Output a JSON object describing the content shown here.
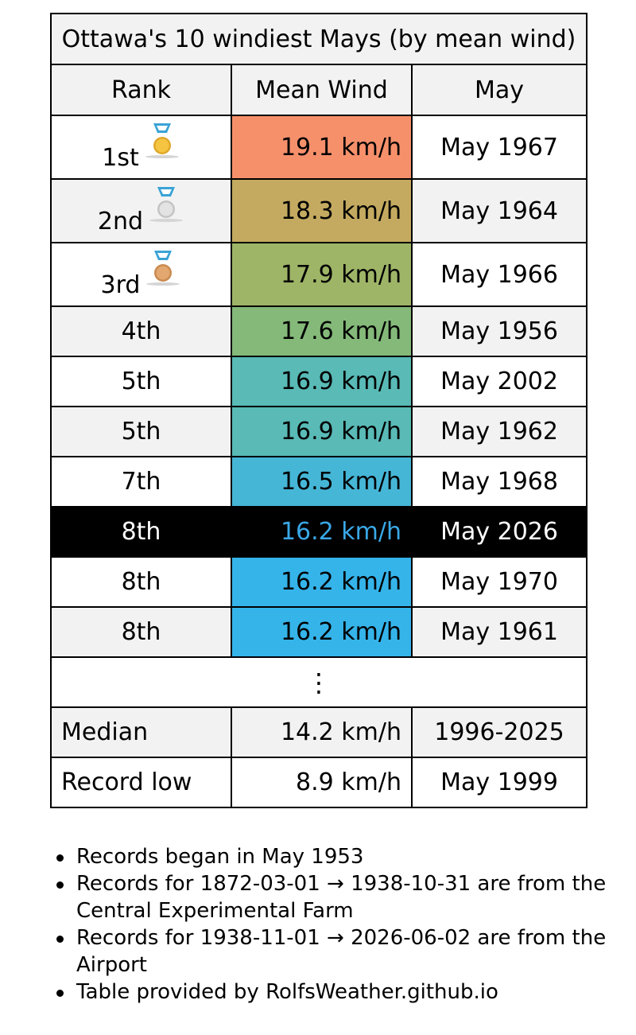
{
  "table": {
    "title": "Ottawa's 10 windiest Mays (by mean wind)",
    "headers": [
      "Rank",
      "Mean Wind",
      "May"
    ],
    "rows": [
      {
        "rank": "1st",
        "medal": "gold-medal-icon",
        "value": "19.1 km/h",
        "month": "May 1967",
        "color": "#f6906b"
      },
      {
        "rank": "2nd",
        "medal": "silver-medal-icon",
        "value": "18.3 km/h",
        "month": "May 1964",
        "color": "#c4aa60"
      },
      {
        "rank": "3rd",
        "medal": "bronze-medal-icon",
        "value": "17.9 km/h",
        "month": "May 1966",
        "color": "#9eb567"
      },
      {
        "rank": "4th",
        "value": "17.6 km/h",
        "month": "May 1956",
        "color": "#84b979"
      },
      {
        "rank": "5th",
        "value": "16.9 km/h",
        "month": "May 2002",
        "color": "#59bab6"
      },
      {
        "rank": "5th",
        "value": "16.9 km/h",
        "month": "May 1962",
        "color": "#59bab6"
      },
      {
        "rank": "7th",
        "value": "16.5 km/h",
        "month": "May 1968",
        "color": "#46b6d6"
      },
      {
        "rank": "8th",
        "value": "16.2 km/h",
        "month": "May 2026",
        "current": true
      },
      {
        "rank": "8th",
        "value": "16.2 km/h",
        "month": "May 1970",
        "color": "#35b4ea"
      },
      {
        "rank": "8th",
        "value": "16.2 km/h",
        "month": "May 1961",
        "color": "#35b4ea"
      }
    ],
    "ellipsis": "⋮",
    "median": {
      "label": "Median",
      "value": "14.2 km/h",
      "period": "1996-2025"
    },
    "record_low": {
      "label": "Record low",
      "value": "8.9 km/h",
      "month": "May 1999"
    }
  },
  "notes": [
    "Records began in May 1953",
    "Records for 1872-03-01 → 1938-10-31 are from the Central Experimental Farm",
    "Records for 1938-11-01 → 2026-06-02 are from the Airport",
    "Table provided by RolfsWeather.github.io"
  ],
  "colors": {
    "header_bg": "#f2f2f2",
    "current_row_bg": "#000000",
    "current_value_text": "#3aa8e8"
  }
}
